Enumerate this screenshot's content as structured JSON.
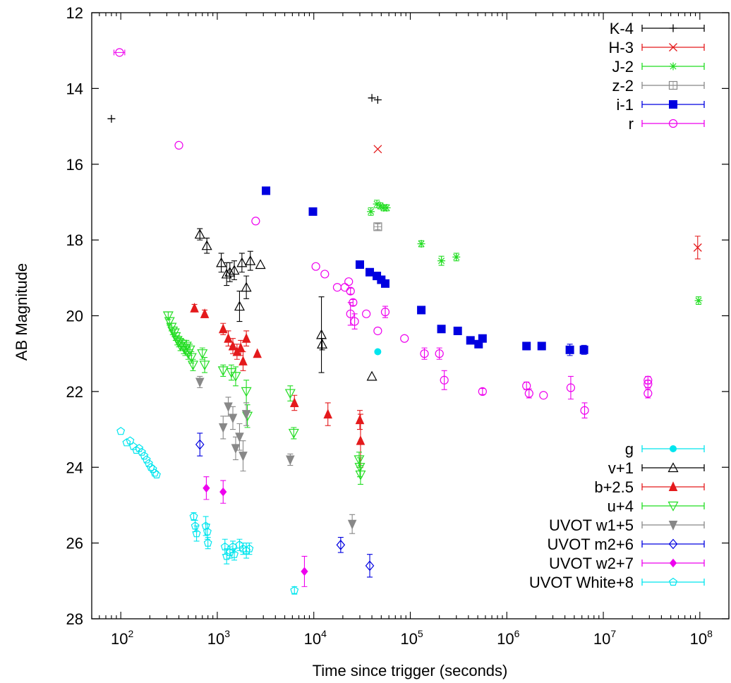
{
  "chart_data": {
    "type": "scatter",
    "xlabel": "Time since trigger (seconds)",
    "ylabel": "AB Magnitude",
    "xscale": "log",
    "xlim": [
      50,
      200000000
    ],
    "ylim": [
      28,
      12
    ],
    "y_inverted": true,
    "x_ticks": [
      {
        "value": 100,
        "base": "10",
        "exp": "2"
      },
      {
        "value": 1000,
        "base": "10",
        "exp": "3"
      },
      {
        "value": 10000,
        "base": "10",
        "exp": "4"
      },
      {
        "value": 100000,
        "base": "10",
        "exp": "5"
      },
      {
        "value": 1000000,
        "base": "10",
        "exp": "6"
      },
      {
        "value": 10000000,
        "base": "10",
        "exp": "7"
      },
      {
        "value": 100000000,
        "base": "10",
        "exp": "8"
      }
    ],
    "y_ticks": [
      "12",
      "14",
      "16",
      "18",
      "20",
      "22",
      "24",
      "26",
      "28"
    ],
    "legend_top_right": [
      {
        "name": "K-4",
        "color": "#000000",
        "marker": "plus"
      },
      {
        "name": "H-3",
        "color": "#e41a1c",
        "marker": "cross"
      },
      {
        "name": "J-2",
        "color": "#22dd22",
        "marker": "star"
      },
      {
        "name": "z-2",
        "color": "#888888",
        "marker": "open-square"
      },
      {
        "name": "i-1",
        "color": "#0000e0",
        "marker": "filled-square"
      },
      {
        "name": "r",
        "color": "#ee00ee",
        "marker": "open-circle"
      }
    ],
    "legend_bottom_right": [
      {
        "name": "g",
        "color": "#00e5ee",
        "marker": "filled-circle"
      },
      {
        "name": "v+1",
        "color": "#000000",
        "marker": "open-triangle"
      },
      {
        "name": "b+2.5",
        "color": "#e41a1c",
        "marker": "filled-triangle"
      },
      {
        "name": "u+4",
        "color": "#22dd22",
        "marker": "open-triangle-down"
      },
      {
        "name": "UVOT w1+5",
        "color": "#888888",
        "marker": "filled-triangle-down"
      },
      {
        "name": "UVOT m2+6",
        "color": "#0000e0",
        "marker": "open-diamond"
      },
      {
        "name": "UVOT w2+7",
        "color": "#ee00ee",
        "marker": "filled-diamond"
      },
      {
        "name": "UVOT White+8",
        "color": "#00e5ee",
        "marker": "open-pentagon"
      }
    ],
    "series": [
      {
        "name": "K-4",
        "color": "#000000",
        "marker": "plus",
        "points": [
          [
            80,
            14.8,
            0.05
          ],
          [
            40000,
            14.25,
            0.05
          ],
          [
            46000,
            14.3,
            0.05
          ]
        ]
      },
      {
        "name": "H-3",
        "color": "#e41a1c",
        "marker": "cross",
        "points": [
          [
            46000,
            15.6,
            0.05
          ],
          [
            95000000,
            18.2,
            0.3
          ]
        ]
      },
      {
        "name": "J-2",
        "color": "#22dd22",
        "marker": "star",
        "points": [
          [
            39000,
            17.25,
            0.1
          ],
          [
            45000,
            17.05,
            0.1
          ],
          [
            49000,
            17.1,
            0.08
          ],
          [
            53000,
            17.15,
            0.08
          ],
          [
            57000,
            17.15,
            0.08
          ],
          [
            130000,
            18.1,
            0.08
          ],
          [
            210000,
            18.55,
            0.12
          ],
          [
            300000,
            18.45,
            0.1
          ],
          [
            97000000,
            19.6,
            0.1
          ]
        ]
      },
      {
        "name": "z-2",
        "color": "#888888",
        "marker": "open-square",
        "points": [
          [
            46000,
            17.65,
            0.08
          ]
        ]
      },
      {
        "name": "i-1",
        "color": "#0000e0",
        "marker": "filled-square",
        "points": [
          [
            3200,
            16.7,
            0.05
          ],
          [
            9800,
            17.25,
            0.05
          ],
          [
            30000,
            18.65,
            0.05
          ],
          [
            38000,
            18.85,
            0.05
          ],
          [
            45000,
            18.95,
            0.05
          ],
          [
            50000,
            19.05,
            0.05
          ],
          [
            55000,
            19.15,
            0.05
          ],
          [
            130000,
            19.85,
            0.05
          ],
          [
            210000,
            20.35,
            0.05
          ],
          [
            310000,
            20.4,
            0.05
          ],
          [
            420000,
            20.65,
            0.05
          ],
          [
            510000,
            20.75,
            0.05
          ],
          [
            560000,
            20.6,
            0.08
          ],
          [
            1600000,
            20.8,
            0.1
          ],
          [
            2300000,
            20.8,
            0.1
          ],
          [
            4500000,
            20.9,
            0.15
          ],
          [
            6300000,
            20.9,
            0.12
          ]
        ]
      },
      {
        "name": "r",
        "color": "#ee00ee",
        "marker": "open-circle",
        "points": [
          [
            97,
            13.05,
            0.05
          ],
          [
            400,
            15.5,
            0.05
          ],
          [
            2500,
            17.5,
            0.05
          ],
          [
            10500,
            18.7,
            0.05
          ],
          [
            13000,
            18.9,
            0.05
          ],
          [
            17500,
            19.25,
            0.05
          ],
          [
            21000,
            19.25,
            0.05
          ],
          [
            23000,
            19.1,
            0.05
          ],
          [
            24000,
            19.35,
            0.08
          ],
          [
            25500,
            19.65,
            0.08
          ],
          [
            24000,
            19.95,
            0.3
          ],
          [
            26500,
            20.15,
            0.2
          ],
          [
            35000,
            19.95,
            0.05
          ],
          [
            46000,
            20.4,
            0.05
          ],
          [
            55000,
            19.9,
            0.15
          ],
          [
            87000,
            20.6,
            0.05
          ],
          [
            140000,
            21.0,
            0.15
          ],
          [
            200000,
            21.0,
            0.15
          ],
          [
            225000,
            21.7,
            0.25
          ],
          [
            560000,
            22.0,
            0.08
          ],
          [
            1600000,
            21.85,
            0.1
          ],
          [
            1700000,
            22.05,
            0.12
          ],
          [
            2400000,
            22.1,
            0.05
          ],
          [
            4600000,
            21.9,
            0.3
          ],
          [
            6400000,
            22.5,
            0.2
          ],
          [
            29000000,
            21.7,
            0.1
          ],
          [
            29000000,
            21.8,
            0.1
          ],
          [
            29000000,
            22.05,
            0.12
          ]
        ]
      },
      {
        "name": "g",
        "color": "#00e5ee",
        "marker": "filled-circle",
        "points": [
          [
            46000,
            20.95,
            0.05
          ]
        ]
      },
      {
        "name": "v+1",
        "color": "#000000",
        "marker": "open-triangle",
        "points": [
          [
            660,
            17.85,
            0.15
          ],
          [
            780,
            18.15,
            0.2
          ],
          [
            1100,
            18.6,
            0.25
          ],
          [
            1250,
            18.9,
            0.3
          ],
          [
            1350,
            18.85,
            0.25
          ],
          [
            1500,
            18.8,
            0.25
          ],
          [
            1700,
            19.75,
            0.4
          ],
          [
            1800,
            18.6,
            0.25
          ],
          [
            2000,
            19.25,
            0.3
          ],
          [
            2200,
            18.55,
            0.25
          ],
          [
            2800,
            18.65,
            0.05
          ],
          [
            12000,
            20.5,
            1.0
          ],
          [
            12200,
            20.75,
            0.15
          ],
          [
            40000,
            21.6,
            0.05
          ]
        ]
      },
      {
        "name": "b+2.5",
        "color": "#e41a1c",
        "marker": "filled-triangle",
        "points": [
          [
            580,
            19.8,
            0.1
          ],
          [
            740,
            19.95,
            0.1
          ],
          [
            1150,
            20.35,
            0.15
          ],
          [
            1300,
            20.6,
            0.2
          ],
          [
            1450,
            20.8,
            0.2
          ],
          [
            1600,
            20.95,
            0.2
          ],
          [
            1750,
            20.85,
            0.2
          ],
          [
            1850,
            21.2,
            0.25
          ],
          [
            2000,
            20.6,
            0.2
          ],
          [
            2600,
            21.0,
            0.05
          ],
          [
            6300,
            22.3,
            0.2
          ],
          [
            14000,
            22.6,
            0.3
          ],
          [
            30000,
            22.75,
            0.25
          ],
          [
            30500,
            23.3,
            0.7
          ]
        ]
      },
      {
        "name": "u+4",
        "color": "#22dd22",
        "marker": "open-triangle-down",
        "points": [
          [
            310,
            20.0,
            0.1
          ],
          [
            320,
            20.15,
            0.1
          ],
          [
            335,
            20.3,
            0.1
          ],
          [
            345,
            20.4,
            0.1
          ],
          [
            360,
            20.45,
            0.1
          ],
          [
            370,
            20.55,
            0.1
          ],
          [
            385,
            20.65,
            0.12
          ],
          [
            400,
            20.7,
            0.12
          ],
          [
            415,
            20.8,
            0.12
          ],
          [
            430,
            20.75,
            0.12
          ],
          [
            450,
            20.85,
            0.15
          ],
          [
            465,
            20.9,
            0.15
          ],
          [
            480,
            20.8,
            0.15
          ],
          [
            500,
            21.0,
            0.15
          ],
          [
            520,
            20.9,
            0.15
          ],
          [
            540,
            21.1,
            0.15
          ],
          [
            560,
            21.3,
            0.15
          ],
          [
            700,
            21.0,
            0.15
          ],
          [
            740,
            21.3,
            0.2
          ],
          [
            1150,
            21.45,
            0.15
          ],
          [
            1400,
            21.5,
            0.2
          ],
          [
            1550,
            21.6,
            0.25
          ],
          [
            2000,
            22.0,
            0.3
          ],
          [
            2050,
            22.65,
            0.3
          ],
          [
            5700,
            22.05,
            0.2
          ],
          [
            6200,
            23.1,
            0.15
          ],
          [
            29500,
            23.8,
            0.2
          ],
          [
            30000,
            24.0,
            0.25
          ],
          [
            30500,
            24.2,
            0.25
          ]
        ]
      },
      {
        "name": "UVOT w1+5",
        "color": "#888888",
        "marker": "filled-triangle-down",
        "points": [
          [
            660,
            21.75,
            0.15
          ],
          [
            1150,
            22.95,
            0.3
          ],
          [
            1300,
            22.4,
            0.25
          ],
          [
            1450,
            22.7,
            0.3
          ],
          [
            1550,
            23.5,
            0.3
          ],
          [
            1700,
            23.2,
            0.35
          ],
          [
            1850,
            23.7,
            0.4
          ],
          [
            2000,
            22.6,
            0.3
          ],
          [
            5700,
            23.8,
            0.15
          ],
          [
            25000,
            25.5,
            0.25
          ]
        ]
      },
      {
        "name": "UVOT m2+6",
        "color": "#0000e0",
        "marker": "open-diamond",
        "points": [
          [
            660,
            23.4,
            0.3
          ],
          [
            19000,
            26.05,
            0.2
          ],
          [
            38000,
            26.6,
            0.3
          ]
        ]
      },
      {
        "name": "UVOT w2+7",
        "color": "#ee00ee",
        "marker": "filled-diamond",
        "points": [
          [
            770,
            24.55,
            0.3
          ],
          [
            1150,
            24.65,
            0.3
          ],
          [
            8000,
            26.75,
            0.4
          ]
        ]
      },
      {
        "name": "UVOT White+8",
        "color": "#00e5ee",
        "marker": "open-pentagon",
        "points": [
          [
            100,
            23.05,
            0.05
          ],
          [
            115,
            23.35,
            0.05
          ],
          [
            125,
            23.3,
            0.05
          ],
          [
            135,
            23.45,
            0.05
          ],
          [
            145,
            23.55,
            0.05
          ],
          [
            155,
            23.5,
            0.05
          ],
          [
            165,
            23.6,
            0.05
          ],
          [
            175,
            23.7,
            0.05
          ],
          [
            185,
            23.8,
            0.05
          ],
          [
            195,
            23.9,
            0.05
          ],
          [
            205,
            24.0,
            0.05
          ],
          [
            215,
            24.05,
            0.05
          ],
          [
            225,
            24.15,
            0.05
          ],
          [
            235,
            24.2,
            0.05
          ],
          [
            570,
            25.3,
            0.1
          ],
          [
            590,
            25.55,
            0.15
          ],
          [
            610,
            25.75,
            0.2
          ],
          [
            760,
            25.55,
            0.25
          ],
          [
            790,
            25.7,
            0.2
          ],
          [
            800,
            26.0,
            0.15
          ],
          [
            1200,
            26.1,
            0.2
          ],
          [
            1250,
            26.35,
            0.2
          ],
          [
            1350,
            26.25,
            0.15
          ],
          [
            1450,
            26.1,
            0.15
          ],
          [
            1500,
            26.3,
            0.15
          ],
          [
            1700,
            26.05,
            0.15
          ],
          [
            1850,
            26.15,
            0.15
          ],
          [
            2000,
            26.2,
            0.2
          ],
          [
            2150,
            26.15,
            0.15
          ],
          [
            6300,
            27.25,
            0.1
          ]
        ]
      }
    ]
  }
}
